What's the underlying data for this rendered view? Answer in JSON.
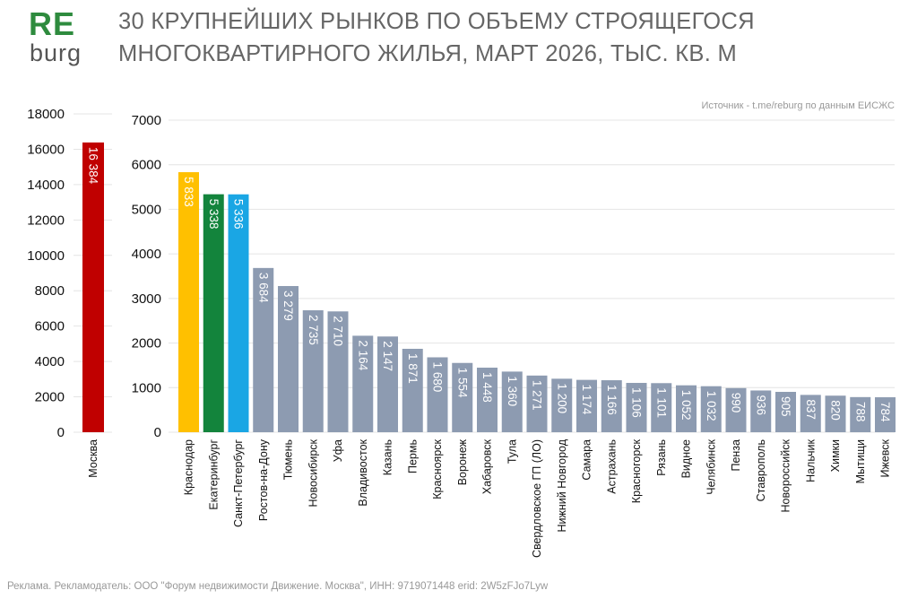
{
  "logo": {
    "top": "RE",
    "bottom": "burg",
    "top_color": "#2e8b3e"
  },
  "header": {
    "title_line1": "30 КРУПНЕЙШИХ РЫНКОВ ПО ОБЪЕМУ СТРОЯЩЕГОСЯ",
    "title_line2": "МНОГОКВАРТИРНОГО ЖИЛЬЯ, МАРТ 2026, ТЫС. КВ. М"
  },
  "source": "Источник - t.me/reburg по данным ЕИСЖС",
  "footer": "Реклама. Рекламодатель: ООО \"Форум недвижимости Движение. Москва\", ИНН: 9719071448 erid: 2W5zFJo7Lyw",
  "colors": {
    "default_bar": "#8d9bb1",
    "grid": "#e4e4e4"
  },
  "chart_data": [
    {
      "type": "bar",
      "categories": [
        "Москва"
      ],
      "values": [
        16384
      ],
      "value_labels": [
        "16 384"
      ],
      "colors": [
        "#c00000"
      ],
      "ylim": [
        0,
        18000
      ],
      "yticks": [
        0,
        2000,
        4000,
        6000,
        8000,
        10000,
        12000,
        14000,
        16000,
        18000
      ],
      "grid": true
    },
    {
      "type": "bar",
      "categories": [
        "Краснодар",
        "Екатеринбург",
        "Санкт-Петербург",
        "Ростов-на-Дону",
        "Тюмень",
        "Новосибирск",
        "Уфа",
        "Владивосток",
        "Казань",
        "Пермь",
        "Красноярск",
        "Воронеж",
        "Хабаровск",
        "Тула",
        "Свердловское ГП (ЛО)",
        "Нижний Новгород",
        "Самара",
        "Астрахань",
        "Красногорск",
        "Рязань",
        "Видное",
        "Челябинск",
        "Пенза",
        "Ставрополь",
        "Новороссийск",
        "Нальчик",
        "Химки",
        "Мытищи",
        "Ижевск"
      ],
      "values": [
        5833,
        5338,
        5336,
        3684,
        3279,
        2735,
        2710,
        2164,
        2147,
        1871,
        1680,
        1554,
        1448,
        1360,
        1271,
        1200,
        1174,
        1166,
        1106,
        1101,
        1052,
        1032,
        990,
        936,
        905,
        837,
        820,
        788,
        784
      ],
      "value_labels": [
        "5 833",
        "5 338",
        "5 336",
        "3 684",
        "3 279",
        "2 735",
        "2 710",
        "2 164",
        "2 147",
        "1 871",
        "1 680",
        "1 554",
        "1 448",
        "1 360",
        "1 271",
        "1 200",
        "1 174",
        "1 166",
        "1 106",
        "1 101",
        "1 052",
        "1 032",
        "990",
        "936",
        "905",
        "837",
        "820",
        "788",
        "784"
      ],
      "colors": [
        "#ffc000",
        "#13843c",
        "#1aa6e4"
      ],
      "ylim": [
        0,
        7000
      ],
      "yticks": [
        0,
        1000,
        2000,
        3000,
        4000,
        5000,
        6000,
        7000
      ],
      "grid": true
    }
  ]
}
